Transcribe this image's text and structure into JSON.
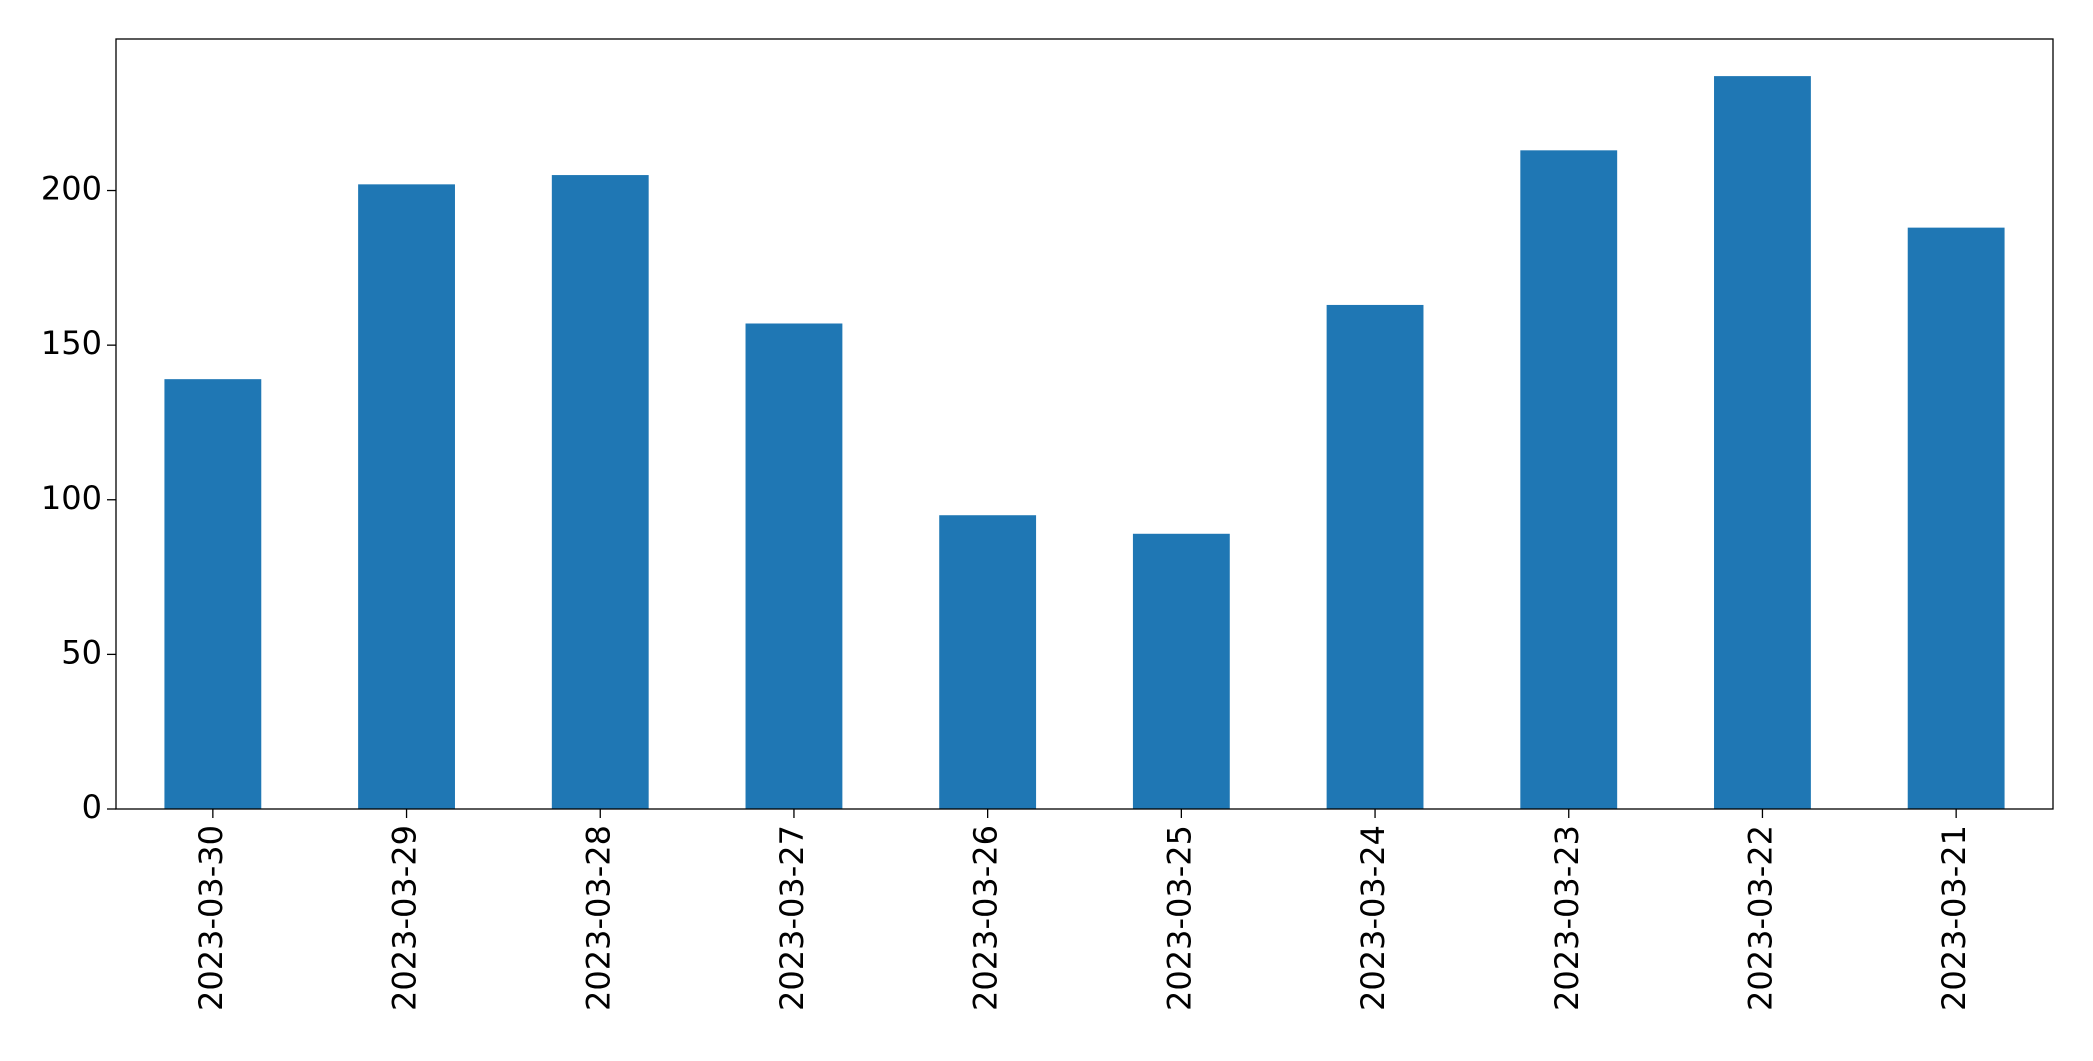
{
  "chart_data": {
    "type": "bar",
    "categories": [
      "2023-03-30",
      "2023-03-29",
      "2023-03-28",
      "2023-03-27",
      "2023-03-26",
      "2023-03-25",
      "2023-03-24",
      "2023-03-23",
      "2023-03-22",
      "2023-03-21"
    ],
    "values": [
      139,
      202,
      205,
      157,
      95,
      89,
      163,
      213,
      237,
      188
    ],
    "color": "#1f77b4",
    "ylim": [
      0,
      249
    ],
    "yticks": [
      0,
      50,
      100,
      150,
      200
    ],
    "grid": false
  }
}
